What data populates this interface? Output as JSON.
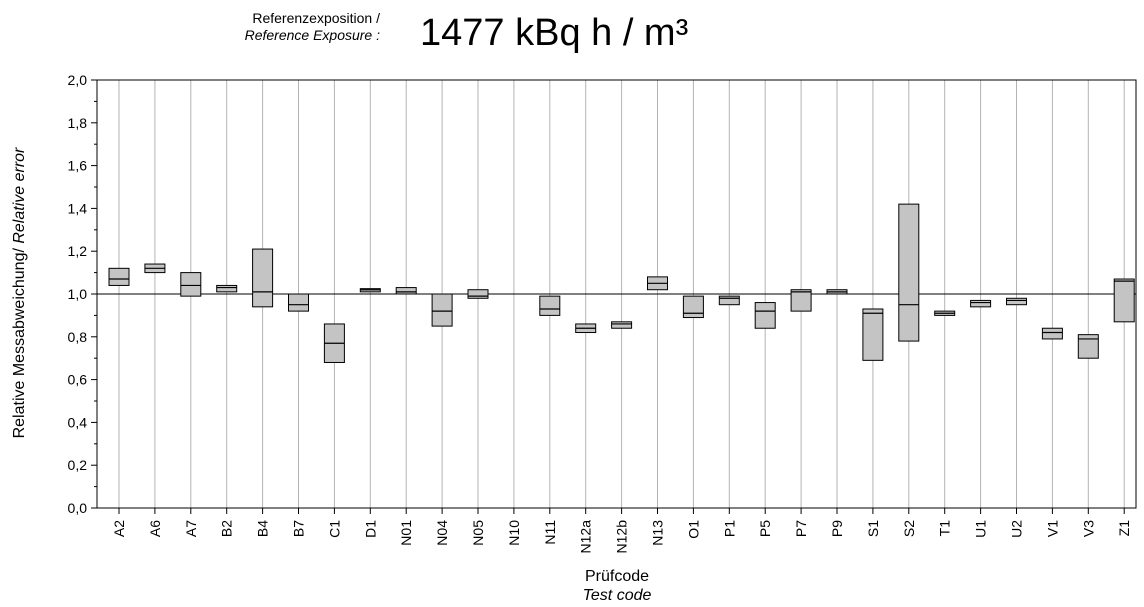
{
  "header": {
    "label_de": "Referenzexposition /",
    "label_en": "Reference Exposure :",
    "value": "1477 kBq h / m³"
  },
  "chart_data": {
    "type": "boxplot",
    "xlabel_de": "Prüfcode",
    "xlabel_en": "Test code",
    "ylabel_de": "Relative Messabweichung/",
    "ylabel_en": "Relative error",
    "ylim": [
      0,
      2
    ],
    "yticks": [
      "0,0",
      "0,2",
      "0,4",
      "0,6",
      "0,8",
      "1,0",
      "1,2",
      "1,4",
      "1,6",
      "1,8",
      "2,0"
    ],
    "reference_line": 1.0,
    "categories": [
      "A2",
      "A6",
      "A7",
      "B2",
      "B4",
      "B7",
      "C1",
      "D1",
      "N01",
      "N04",
      "N05",
      "N10",
      "N11",
      "N12a",
      "N12b",
      "N13",
      "O1",
      "P1",
      "P5",
      "P7",
      "P9",
      "S1",
      "S2",
      "T1",
      "U1",
      "U2",
      "V1",
      "V3",
      "Z1"
    ],
    "boxes": [
      {
        "low": 1.04,
        "median": 1.07,
        "high": 1.12
      },
      {
        "low": 1.1,
        "median": 1.12,
        "high": 1.14
      },
      {
        "low": 0.99,
        "median": 1.04,
        "high": 1.1
      },
      {
        "low": 1.01,
        "median": 1.03,
        "high": 1.04
      },
      {
        "low": 0.94,
        "median": 1.01,
        "high": 1.21
      },
      {
        "low": 0.92,
        "median": 0.95,
        "high": 1.0
      },
      {
        "low": 0.68,
        "median": 0.77,
        "high": 0.86
      },
      {
        "low": 1.01,
        "median": 1.02,
        "high": 1.025
      },
      {
        "low": 1.0,
        "median": 1.01,
        "high": 1.03
      },
      {
        "low": 0.85,
        "median": 0.92,
        "high": 1.0
      },
      {
        "low": 0.98,
        "median": 0.99,
        "high": 1.02
      },
      null,
      {
        "low": 0.9,
        "median": 0.93,
        "high": 0.99
      },
      {
        "low": 0.82,
        "median": 0.84,
        "high": 0.86
      },
      {
        "low": 0.84,
        "median": 0.86,
        "high": 0.87
      },
      {
        "low": 1.02,
        "median": 1.05,
        "high": 1.08
      },
      {
        "low": 0.89,
        "median": 0.91,
        "high": 0.99
      },
      {
        "low": 0.95,
        "median": 0.98,
        "high": 0.99
      },
      {
        "low": 0.84,
        "median": 0.92,
        "high": 0.96
      },
      {
        "low": 0.92,
        "median": 1.01,
        "high": 1.02
      },
      {
        "low": 1.0,
        "median": 1.01,
        "high": 1.02
      },
      {
        "low": 0.69,
        "median": 0.91,
        "high": 0.93
      },
      {
        "low": 0.78,
        "median": 0.95,
        "high": 1.42
      },
      {
        "low": 0.9,
        "median": 0.91,
        "high": 0.92
      },
      {
        "low": 0.94,
        "median": 0.96,
        "high": 0.97
      },
      {
        "low": 0.95,
        "median": 0.97,
        "high": 0.98
      },
      {
        "low": 0.79,
        "median": 0.82,
        "high": 0.84
      },
      {
        "low": 0.7,
        "median": 0.79,
        "high": 0.81
      },
      {
        "low": 0.87,
        "median": 1.06,
        "high": 1.07
      }
    ],
    "colors": {
      "box_fill": "#c4c4c4",
      "grid": "#b3b3b3",
      "axis": "#000000"
    }
  }
}
